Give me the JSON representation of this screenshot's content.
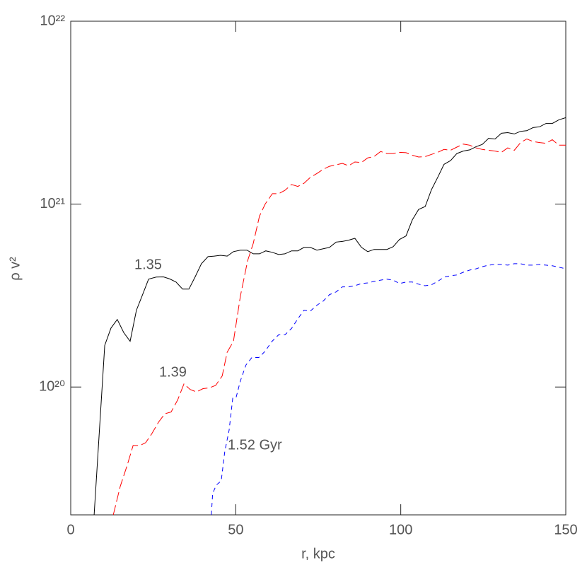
{
  "chart_data": {
    "type": "line",
    "xlabel": "r,  kpc",
    "ylabel": "ρ v²",
    "xlim": [
      0,
      150
    ],
    "xticks": [
      0,
      50,
      100,
      150
    ],
    "ylim": [
      2e+19,
      1e+22
    ],
    "ylog": true,
    "yticks": [
      {
        "value": 1e+20,
        "label": "10²⁰"
      },
      {
        "value": 1e+21,
        "label": "10²¹"
      },
      {
        "value": 1e+22,
        "label": "10²²"
      }
    ],
    "series": [
      {
        "name": "1.35",
        "color": "#000000",
        "dash": "solid",
        "x": [
          7.1,
          10.3,
          12.2,
          14.1,
          16.1,
          18,
          19.9,
          21.6,
          23.6,
          25.9,
          28.1,
          30,
          31.9,
          33.9,
          35.8,
          37.7,
          39.6,
          41.6,
          43.5,
          45.4,
          47.4,
          49.3,
          51.4,
          53.4,
          55.3,
          57.2,
          59.1,
          61.1,
          63,
          64.9,
          66.9,
          68.8,
          70.7,
          72.6,
          74.6,
          76.5,
          78.4,
          80.4,
          82.3,
          84.2,
          86.1,
          88.1,
          90,
          91.9,
          93.9,
          95.8,
          97.7,
          99.6,
          101.6,
          103.5,
          105.4,
          107.4,
          109.3,
          111.2,
          113.1,
          115.1,
          117,
          118.9,
          120.9,
          122.8,
          124.7,
          126.6,
          128.6,
          130.5,
          132.4,
          134.4,
          136.3,
          138.2,
          140.1,
          142.1,
          144,
          145.9,
          147.9,
          150
        ],
        "values": [
          2e+19,
          1.69e+20,
          2.1e+20,
          2.34e+20,
          1.98e+20,
          1.78e+20,
          2.63e+20,
          3.14e+20,
          3.89e+20,
          3.99e+20,
          4e+20,
          3.9e+20,
          3.75e+20,
          3.43e+20,
          3.43e+20,
          4e+20,
          4.72e+20,
          5.16e+20,
          5.2e+20,
          5.25e+20,
          5.2e+20,
          5.5e+20,
          5.6e+20,
          5.6e+20,
          5.35e+20,
          5.35e+20,
          5.55e+20,
          5.45e+20,
          5.3e+20,
          5.35e+20,
          5.55e+20,
          5.55e+20,
          5.8e+20,
          5.8e+20,
          5.6e+20,
          5.7e+20,
          5.8e+20,
          6.2e+20,
          6.25e+20,
          6.35e+20,
          6.5e+20,
          5.8e+20,
          5.5e+20,
          5.65e+20,
          5.65e+20,
          5.65e+20,
          5.85e+20,
          6.4e+20,
          6.7e+20,
          8.2e+20,
          9.35e+20,
          9.7e+20,
          1.2e+21,
          1.4e+21,
          1.65e+21,
          1.73e+21,
          1.89e+21,
          1.95e+21,
          1.98e+21,
          2.06e+21,
          2.12e+21,
          2.29e+21,
          2.27e+21,
          2.44e+21,
          2.46e+21,
          2.42e+21,
          2.5e+21,
          2.52e+21,
          2.62e+21,
          2.65e+21,
          2.76e+21,
          2.76e+21,
          2.89e+21,
          2.97e+21
        ]
      },
      {
        "name": "1.39",
        "color": "#ff0000",
        "dash": "long",
        "x": [
          12.9,
          15,
          17.1,
          18.9,
          21,
          22.7,
          24.6,
          26.6,
          28.5,
          30.4,
          32.4,
          34.3,
          36.2,
          38.1,
          40.1,
          42,
          43.9,
          45.9,
          47.4,
          49.3,
          51.4,
          53.6,
          55.3,
          57.2,
          58.9,
          61.1,
          63,
          64.9,
          66.9,
          68.8,
          70.7,
          72.6,
          74.6,
          76.5,
          78.4,
          80.4,
          82.3,
          84.2,
          86.1,
          88.1,
          90,
          91.9,
          93.9,
          95.8,
          97.7,
          99.6,
          101.6,
          103.5,
          105.4,
          107.4,
          109.3,
          111.2,
          113.1,
          115.1,
          117,
          118.9,
          120.9,
          122.8,
          124.7,
          126.6,
          128.6,
          130.5,
          132.4,
          134.4,
          136.3,
          138.2,
          140.1,
          142.1,
          144,
          145.9,
          147.9,
          150
        ],
        "values": [
          2e+19,
          2.86e+19,
          3.73e+19,
          4.79e+19,
          4.79e+19,
          4.96e+19,
          5.57e+19,
          6.42e+19,
          7.14e+19,
          7.3e+19,
          8.5e+19,
          1.04e+20,
          9.7e+19,
          9.4e+19,
          9.8e+19,
          9.9e+19,
          1.02e+20,
          1.15e+20,
          1.55e+20,
          1.78e+20,
          3.14e+20,
          4.9e+20,
          6.1e+20,
          8.6e+20,
          1e+21,
          1.14e+21,
          1.14e+21,
          1.19e+21,
          1.28e+21,
          1.25e+21,
          1.3e+21,
          1.4e+21,
          1.47e+21,
          1.55e+21,
          1.61e+21,
          1.64e+21,
          1.67e+21,
          1.62e+21,
          1.7e+21,
          1.69e+21,
          1.79e+21,
          1.82e+21,
          1.94e+21,
          1.89e+21,
          1.89e+21,
          1.92e+21,
          1.91e+21,
          1.85e+21,
          1.81e+21,
          1.82e+21,
          1.87e+21,
          1.92e+21,
          1.99e+21,
          1.97e+21,
          2.05e+21,
          2.13e+21,
          2.1e+21,
          2.03e+21,
          1.99e+21,
          1.97e+21,
          1.95e+21,
          1.92e+21,
          2.03e+21,
          1.97e+21,
          2.17e+21,
          2.27e+21,
          2.2e+21,
          2.17e+21,
          2.15e+21,
          2.25e+21,
          2.1e+21,
          2.1e+21
        ]
      },
      {
        "name": "1.52 Gyr",
        "color": "#0000ff",
        "dash": "short",
        "x": [
          42.6,
          43,
          44.1,
          45.6,
          46.7,
          48,
          49.1,
          50.1,
          51.4,
          53.1,
          54.9,
          57,
          58.9,
          60.9,
          63,
          64.9,
          66.9,
          68.8,
          70.7,
          72.6,
          74.6,
          76.5,
          78.4,
          80.4,
          82.3,
          84.2,
          86.1,
          88.1,
          90,
          91.9,
          93.9,
          95.8,
          97.7,
          99.6,
          101.6,
          103.5,
          105.4,
          107.4,
          109.3,
          111.2,
          113.1,
          115.1,
          117,
          118.9,
          120.9,
          122.8,
          124.7,
          126.6,
          128.6,
          130.5,
          132.4,
          134.4,
          136.3,
          138.2,
          140.1,
          142.1,
          144,
          145.9,
          147.9,
          150
        ],
        "values": [
          2e+19,
          2.62e+19,
          2.91e+19,
          3.07e+19,
          4.46e+19,
          5.82e+19,
          8.7e+19,
          8.75e+19,
          1.08e+20,
          1.32e+20,
          1.45e+20,
          1.45e+20,
          1.57e+20,
          1.77e+20,
          1.93e+20,
          1.93e+20,
          2.09e+20,
          2.36e+20,
          2.63e+20,
          2.6e+20,
          2.8e+20,
          2.95e+20,
          3.2e+20,
          3.31e+20,
          3.53e+20,
          3.53e+20,
          3.58e+20,
          3.68e+20,
          3.71e+20,
          3.78e+20,
          3.84e+20,
          3.89e+20,
          3.84e+20,
          3.68e+20,
          3.75e+20,
          3.75e+20,
          3.65e+20,
          3.58e+20,
          3.62e+20,
          3.78e+20,
          3.99e+20,
          4.06e+20,
          4.1e+20,
          4.24e+20,
          4.36e+20,
          4.43e+20,
          4.55e+20,
          4.64e+20,
          4.68e+20,
          4.68e+20,
          4.64e+20,
          4.72e+20,
          4.72e+20,
          4.64e+20,
          4.64e+20,
          4.68e+20,
          4.64e+20,
          4.6e+20,
          4.52e+20,
          4.43e+20
        ]
      }
    ]
  }
}
